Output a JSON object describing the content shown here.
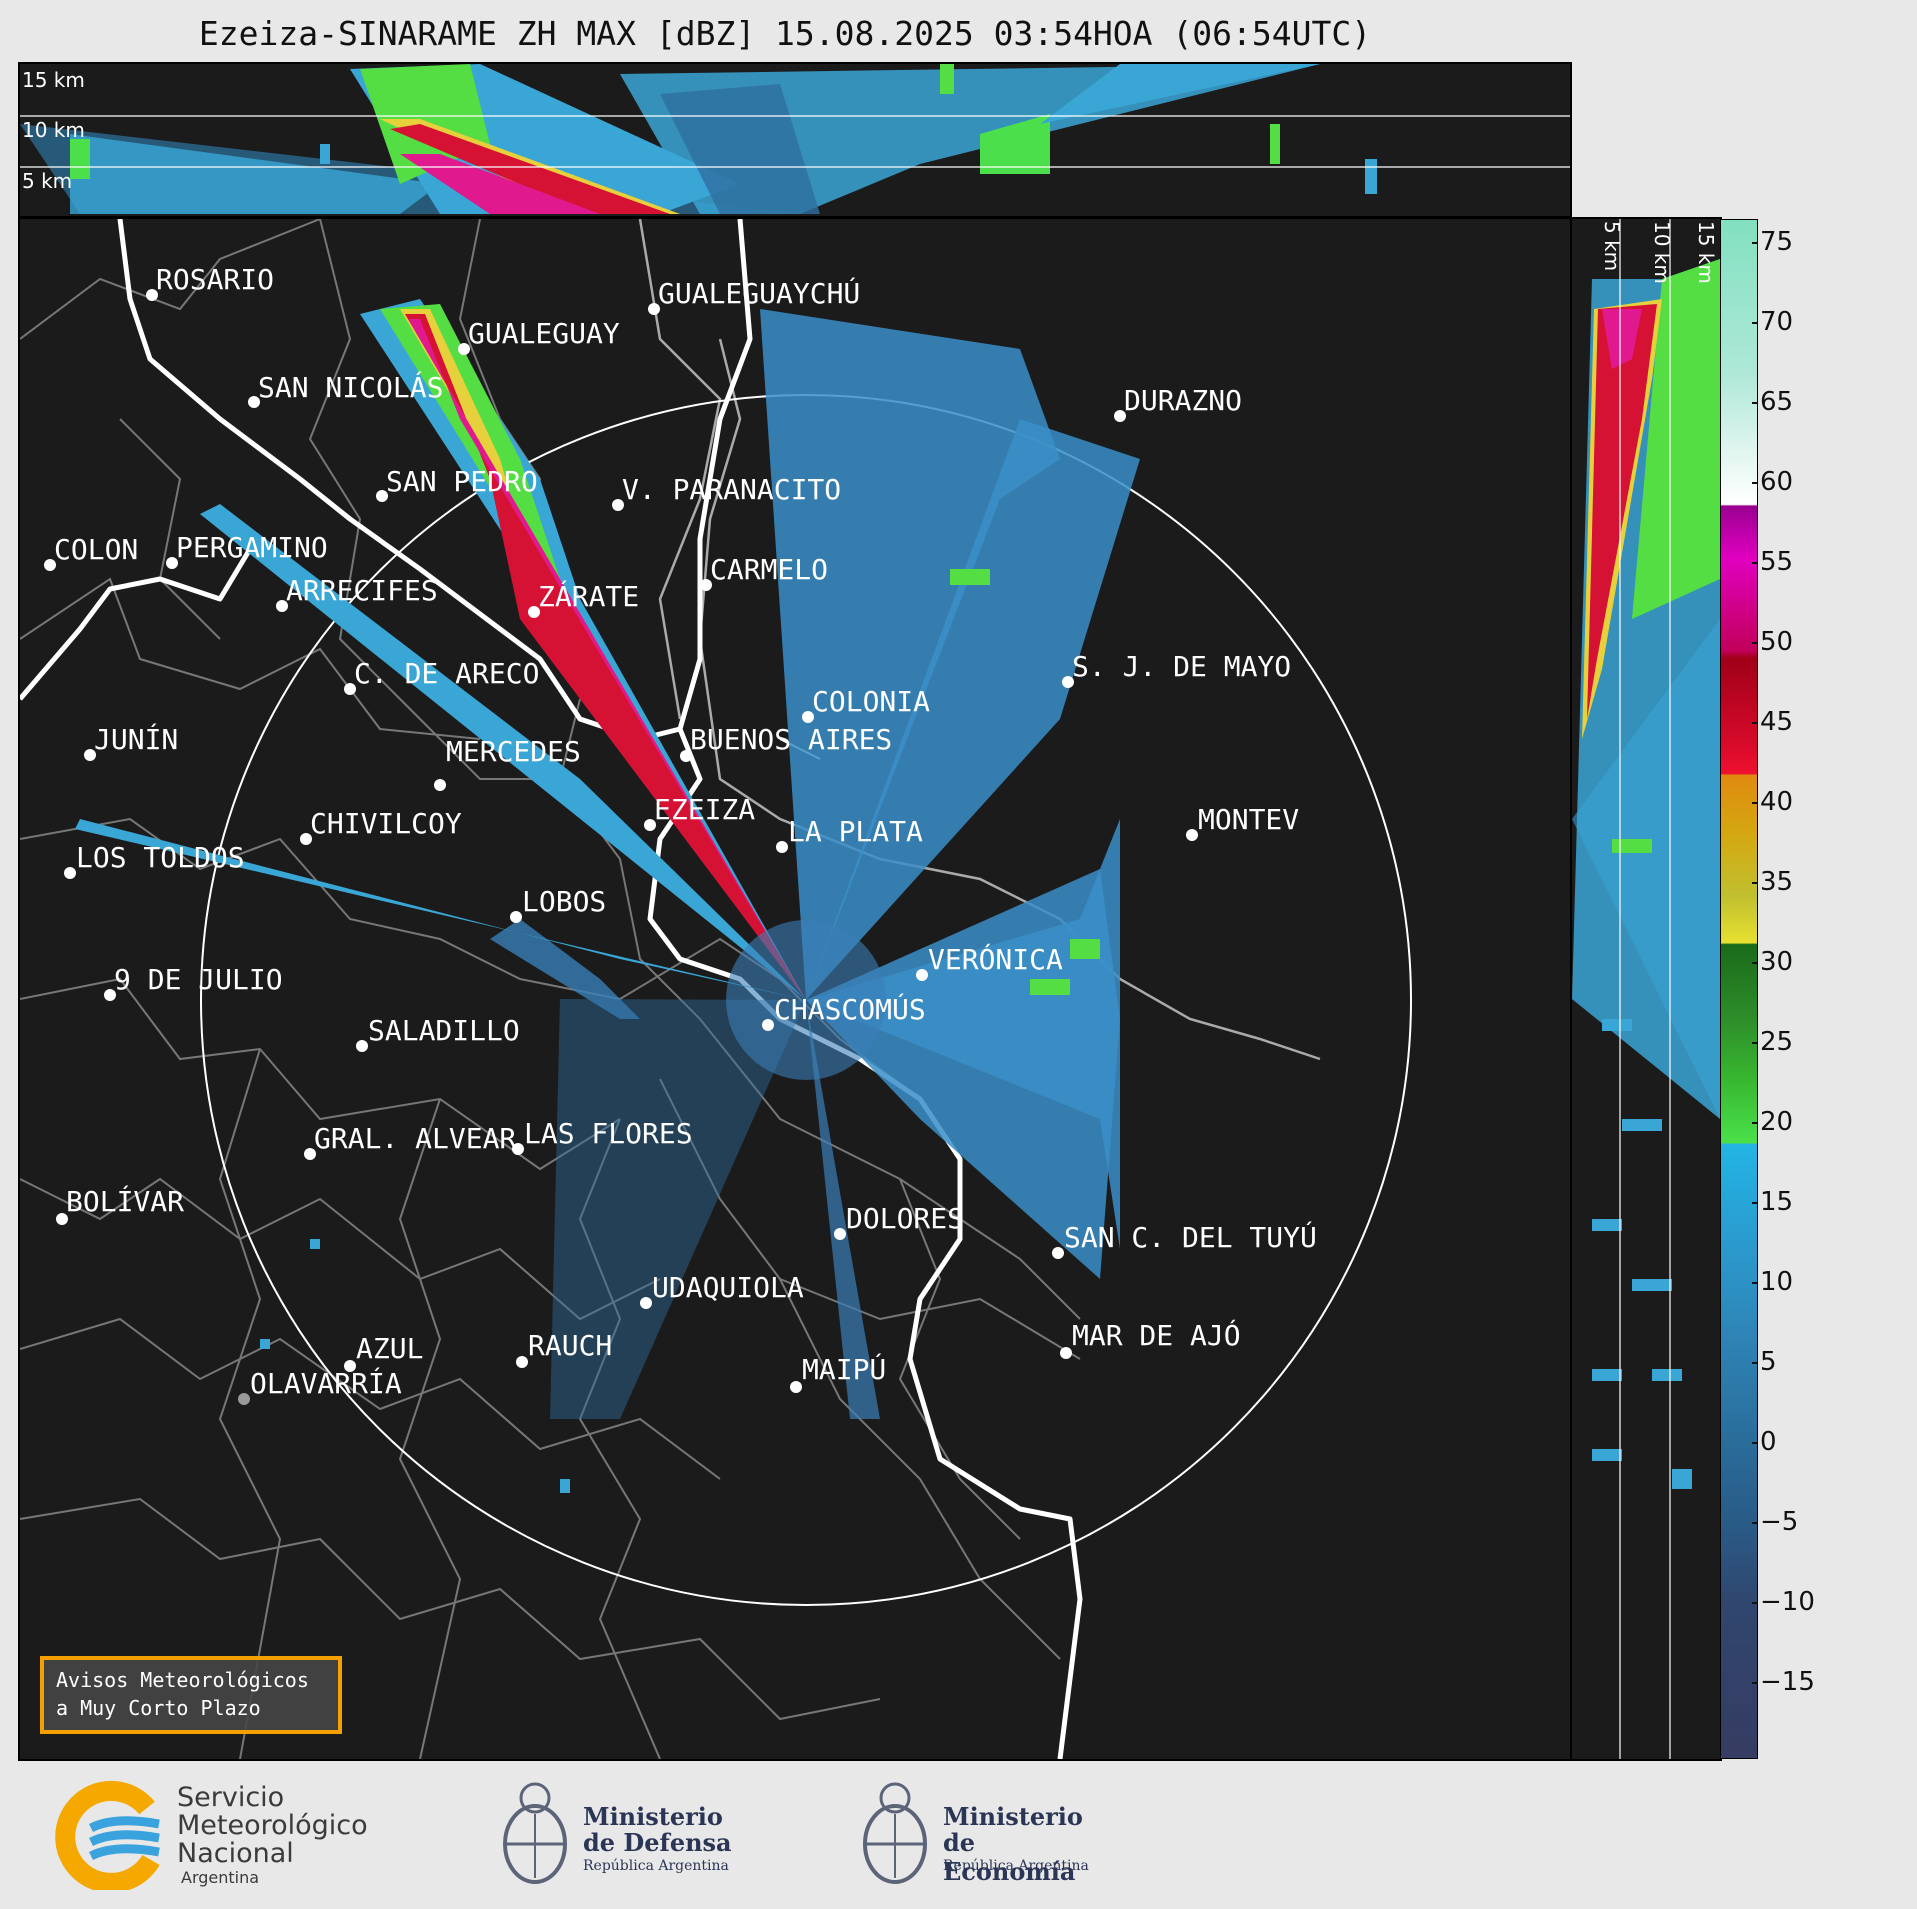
{
  "title": "Ezeiza-SINARAME ZH MAX [dBZ] 15.08.2025 03:54HOA (06:54UTC)",
  "altitude_labels": {
    "a15": "15 km",
    "a10": "10 km",
    "a5": "5 km"
  },
  "colorbar": {
    "ticks": [
      "75",
      "70",
      "65",
      "60",
      "55",
      "50",
      "45",
      "40",
      "35",
      "30",
      "25",
      "20",
      "15",
      "10",
      "5",
      "0",
      "−5",
      "−10",
      "−15"
    ],
    "range": [
      -20,
      77
    ]
  },
  "cities": {
    "rosario": "ROSARIO",
    "gualeguaychu": "GUALEGUAYCHÚ",
    "gualeguay": "GUALEGUAY",
    "san_nicolas": "SAN NICOLÁS",
    "durazno": "DURAZNO",
    "san_pedro": "SAN PEDRO",
    "paranacito": "V. PARANACITO",
    "colon": "COLON",
    "pergamino": "PERGAMINO",
    "carmelo": "CARMELO",
    "arrecifes": "ARRECIFES",
    "zarate": "ZÁRATE",
    "sj_mayo": "S. J. DE MAYO",
    "c_areco": "C. DE ARECO",
    "colonia": "COLONIA",
    "junin": "JUNÍN",
    "buenos_aires": "BUENOS AIRES",
    "mercedes": "MERCEDES",
    "montevideo": "MONTEV",
    "ezeiza": "EZEIZA",
    "chivilcoy": "CHIVILCOY",
    "la_plata": "LA PLATA",
    "los_toldos": "LOS TOLDOS",
    "lobos": "LOBOS",
    "veronica": "VERÓNICA",
    "nueve_julio": "9 DE JULIO",
    "chascomus": "CHASCOMÚS",
    "saladillo": "SALADILLO",
    "gral_alvear": "GRAL. ALVEAR",
    "las_flores": "LAS FLORES",
    "bolivar": "BOLÍVAR",
    "dolores": "DOLORES",
    "san_clemente": "SAN C. DEL TUYÚ",
    "udaquiola": "UDAQUIOLA",
    "mar_de_ajo": "MAR DE AJÓ",
    "azul": "AZUL",
    "rauch": "RAUCH",
    "maipu": "MAIPÚ",
    "olavarria": "OLAVARRÍA"
  },
  "avisos": {
    "line1": "Avisos Meteorológicos",
    "line2": "a Muy Corto Plazo"
  },
  "logos": {
    "smn": {
      "l1": "Servicio",
      "l2": "Meteorológico",
      "l3": "Nacional",
      "l4": "Argentina"
    },
    "defensa": {
      "l1": "Ministerio",
      "l2": "de Defensa",
      "l3": "República Argentina"
    },
    "economia": {
      "l1": "Ministerio",
      "l2": "de Economía",
      "l3": "República Argentina"
    }
  },
  "colors": {
    "background": "#1b1b1b",
    "panel_bg": "#e8e8e8",
    "avisos_border": "#f5a000",
    "smn_orange": "#f5a800",
    "smn_blue": "#3aa3dd"
  }
}
